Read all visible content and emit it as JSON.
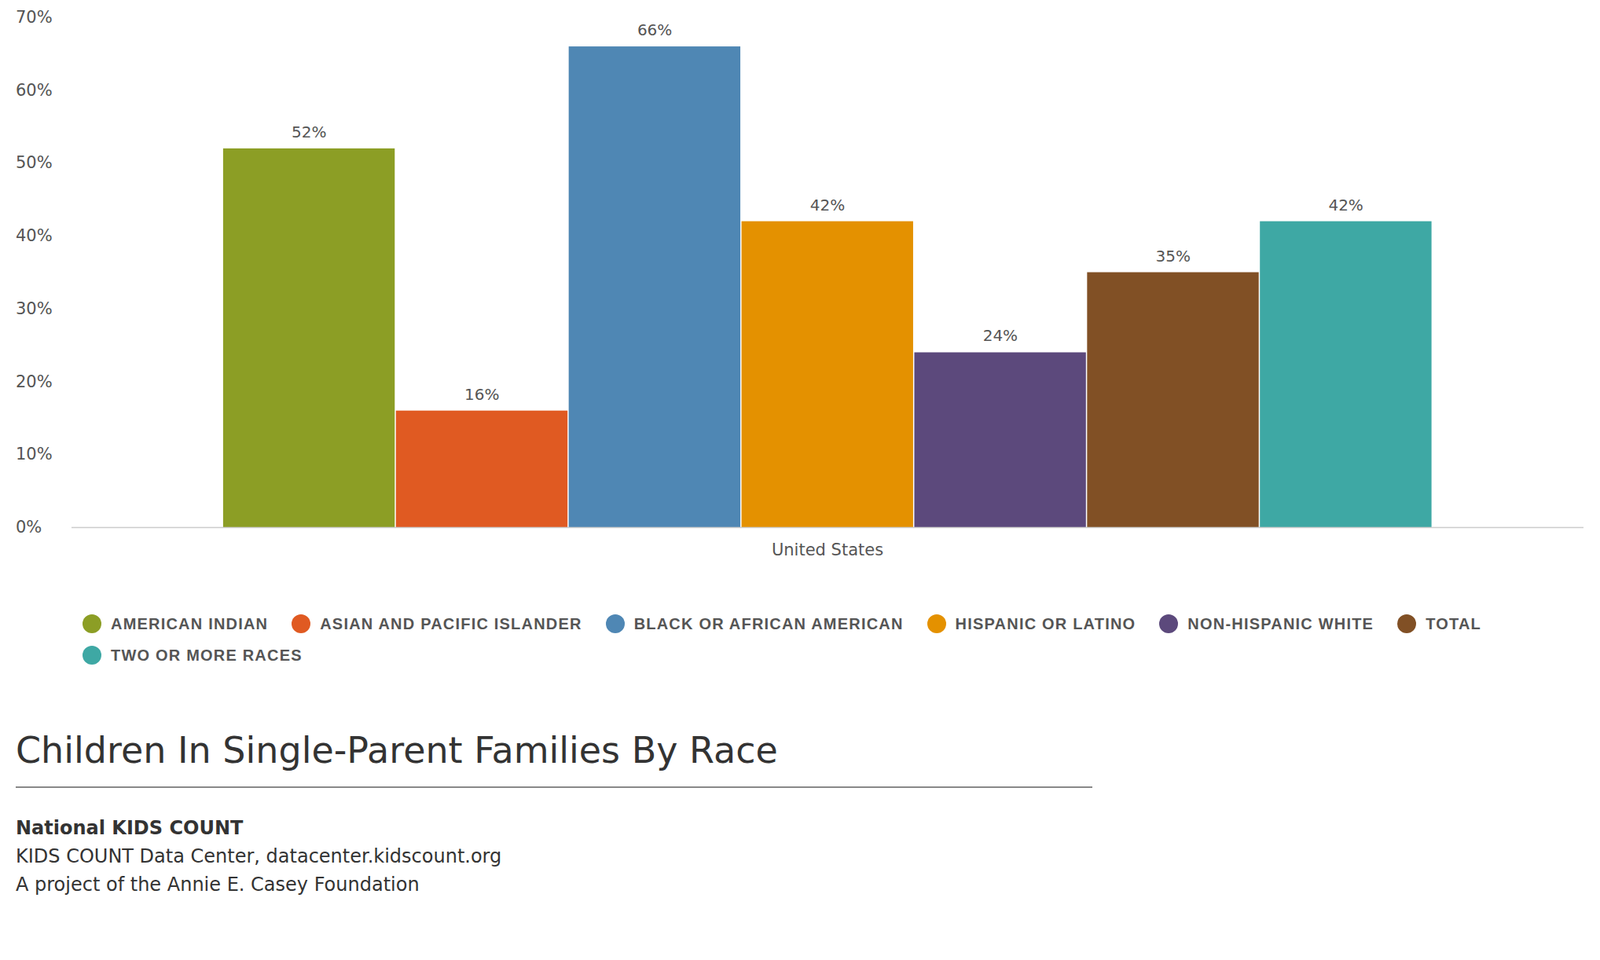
{
  "chart_data": {
    "type": "bar",
    "title": "Children In Single-Parent Families By Race",
    "annotations": [
      "National KIDS COUNT",
      "KIDS COUNT Data Center, datacenter.kidscount.org",
      "A project of the Annie E. Casey Foundation"
    ],
    "categories": [
      "United States"
    ],
    "series": [
      {
        "name": "AMERICAN INDIAN",
        "color": "#8c9e25",
        "values": [
          52
        ],
        "value_labels": [
          "52%"
        ]
      },
      {
        "name": "ASIAN AND PACIFIC ISLANDER",
        "color": "#e05a22",
        "values": [
          16
        ],
        "value_labels": [
          "16%"
        ]
      },
      {
        "name": "BLACK OR AFRICAN AMERICAN",
        "color": "#4f87b4",
        "values": [
          66
        ],
        "value_labels": [
          "66%"
        ]
      },
      {
        "name": "HISPANIC OR LATINO",
        "color": "#e49100",
        "values": [
          42
        ],
        "value_labels": [
          "42%"
        ]
      },
      {
        "name": "NON-HISPANIC WHITE",
        "color": "#5c497c",
        "values": [
          24
        ],
        "value_labels": [
          "24%"
        ]
      },
      {
        "name": "TOTAL",
        "color": "#815025",
        "values": [
          35
        ],
        "value_labels": [
          "35%"
        ]
      },
      {
        "name": "TWO OR MORE RACES",
        "color": "#3ea8a4",
        "values": [
          42
        ],
        "value_labels": [
          "42%"
        ]
      }
    ],
    "ylim": [
      0,
      70
    ],
    "yticks": [
      {
        "value": 0,
        "label": "0%"
      },
      {
        "value": 10,
        "label": "10%"
      },
      {
        "value": 20,
        "label": "20%"
      },
      {
        "value": 30,
        "label": "30%"
      },
      {
        "value": 40,
        "label": "40%"
      },
      {
        "value": 50,
        "label": "50%"
      },
      {
        "value": 60,
        "label": "60%"
      },
      {
        "value": 70,
        "label": "70%"
      }
    ],
    "grid": false,
    "legend": "bottom",
    "data_labels": true
  }
}
